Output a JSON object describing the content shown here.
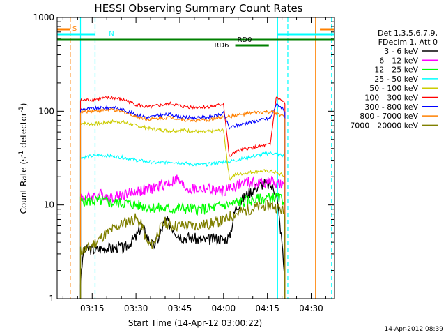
{
  "chart_data": {
    "type": "line",
    "title": "HESSI Observing Summary Count Rates",
    "xlabel": "Start Time (14-Apr-12 03:00:22)",
    "ylabel_main": "Count Rate (s",
    "ylabel_sup1": "-1",
    "ylabel_mid": " detector",
    "ylabel_sup2": "-1",
    "ylabel_end": ")",
    "y_scale": "log",
    "ylim": [
      1,
      1000
    ],
    "xlim_minutes": [
      3.0,
      98.0
    ],
    "x_ticks": [
      {
        "t": 15,
        "label": "03:15"
      },
      {
        "t": 30,
        "label": "03:30"
      },
      {
        "t": 45,
        "label": "03:45"
      },
      {
        "t": 60,
        "label": "04:00"
      },
      {
        "t": 75,
        "label": "04:15"
      },
      {
        "t": 90,
        "label": "04:30"
      }
    ],
    "y_ticks": [
      {
        "v": 1,
        "label": "1"
      },
      {
        "v": 10,
        "label": "10"
      },
      {
        "v": 100,
        "label": "100"
      },
      {
        "v": 1000,
        "label": "1000"
      }
    ],
    "legend_header": [
      "Det 1,3,5,6,7,9,",
      "FDecim 1, Att 0"
    ],
    "series": [
      {
        "name": "3 - 6 keV",
        "color": "#000000",
        "x": [
          11,
          12,
          14,
          16,
          18,
          20,
          22,
          24,
          26,
          28,
          30,
          32,
          34,
          36,
          38,
          40,
          42,
          44,
          46,
          48,
          50,
          52,
          54,
          56,
          58,
          60,
          62,
          64,
          66,
          68,
          70,
          72,
          74,
          76,
          78,
          80,
          81
        ],
        "y": [
          1.5,
          3.2,
          3.4,
          3.3,
          3.4,
          3.5,
          3.4,
          3.6,
          3.4,
          4.0,
          4.5,
          6.0,
          4.5,
          3.6,
          4.6,
          7,
          6,
          5,
          4.5,
          4.5,
          4.4,
          4.2,
          4.2,
          4.3,
          4.4,
          4.3,
          4.5,
          9,
          11,
          13,
          14.5,
          16,
          17,
          16,
          14,
          4,
          1.5
        ]
      },
      {
        "name": "6 - 12 keV",
        "color": "#ff00ff",
        "x": [
          11,
          14,
          18,
          22,
          26,
          30,
          34,
          38,
          42,
          44,
          46,
          48,
          50,
          54,
          58,
          60,
          62,
          64,
          68,
          72,
          76,
          78,
          80,
          81
        ],
        "y": [
          12,
          12,
          13,
          12,
          13,
          14,
          14.5,
          16,
          17.5,
          19,
          16,
          15,
          14.5,
          15,
          14,
          14,
          15,
          16,
          17.5,
          17,
          18,
          17,
          16,
          15
        ]
      },
      {
        "name": "12 - 25 keV",
        "color": "#00ff00",
        "x": [
          11,
          14,
          18,
          22,
          26,
          30,
          34,
          38,
          42,
          46,
          50,
          54,
          58,
          60,
          62,
          64,
          68,
          72,
          76,
          78,
          80,
          81
        ],
        "y": [
          11,
          11,
          11,
          10.5,
          10.5,
          10,
          9.5,
          9.2,
          9,
          9.2,
          9,
          9,
          9.5,
          10,
          10,
          10.5,
          11,
          11.5,
          12,
          12,
          11.5,
          11
        ]
      },
      {
        "name": "25 - 50 keV",
        "color": "#00ffff",
        "x": [
          11,
          14,
          18,
          22,
          26,
          30,
          34,
          38,
          42,
          46,
          50,
          54,
          58,
          60,
          62,
          64,
          68,
          72,
          76,
          78,
          80,
          81
        ],
        "y": [
          32,
          33,
          34,
          33,
          32,
          30,
          29,
          28,
          29,
          28,
          27,
          27,
          28,
          29,
          29,
          30,
          32,
          34,
          36,
          35,
          34,
          33
        ]
      },
      {
        "name": "50 - 100 keV",
        "color": "#cccc00",
        "x": [
          11,
          14,
          18,
          22,
          26,
          30,
          34,
          38,
          42,
          46,
          50,
          54,
          58,
          60,
          62,
          64,
          68,
          72,
          76,
          78,
          80,
          81
        ],
        "y": [
          75,
          73,
          74,
          78,
          76,
          70,
          66,
          63,
          62,
          63,
          61,
          60,
          62,
          63,
          19,
          21,
          22,
          23,
          23,
          22,
          21,
          20
        ]
      },
      {
        "name": "100 - 300 keV",
        "color": "#ff0000",
        "x": [
          11,
          14,
          18,
          22,
          26,
          30,
          34,
          38,
          42,
          46,
          50,
          54,
          58,
          60,
          62,
          64,
          68,
          72,
          76,
          78,
          80,
          81
        ],
        "y": [
          130,
          132,
          136,
          140,
          132,
          118,
          110,
          115,
          120,
          112,
          110,
          111,
          115,
          120,
          32,
          37,
          40,
          42,
          44,
          140,
          130,
          120
        ]
      },
      {
        "name": "300 - 800 keV",
        "color": "#0000ff",
        "x": [
          11,
          14,
          18,
          22,
          26,
          30,
          34,
          38,
          42,
          46,
          50,
          54,
          58,
          60,
          62,
          64,
          68,
          72,
          76,
          78,
          80,
          81
        ],
        "y": [
          104,
          106,
          108,
          110,
          103,
          92,
          86,
          90,
          93,
          86,
          85,
          86,
          90,
          95,
          66,
          70,
          75,
          80,
          84,
          118,
          110,
          100
        ]
      },
      {
        "name": "800 - 7000 keV",
        "color": "#ff8000",
        "x": [
          11,
          14,
          18,
          22,
          26,
          30,
          34,
          38,
          42,
          46,
          50,
          54,
          58,
          60,
          62,
          64,
          68,
          72,
          76,
          78,
          80,
          81
        ],
        "y": [
          98,
          100,
          102,
          104,
          97,
          88,
          82,
          84,
          86,
          81,
          80,
          80,
          84,
          88,
          88,
          90,
          94,
          97,
          98,
          95,
          90,
          85
        ]
      },
      {
        "name": "7000 - 20000 keV",
        "color": "#808000",
        "x": [
          11,
          14,
          18,
          22,
          26,
          28,
          30,
          32,
          34,
          36,
          38,
          40,
          42,
          44,
          46,
          48,
          50,
          54,
          58,
          60,
          62,
          64,
          68,
          72,
          76,
          78,
          80,
          81
        ],
        "y": [
          3.2,
          3.5,
          4.5,
          5.5,
          6.5,
          6.8,
          7.2,
          6.0,
          3.8,
          3.8,
          5.5,
          6.5,
          6.0,
          6.0,
          6.1,
          6.0,
          6.0,
          6.2,
          6.6,
          6.8,
          7.5,
          8.0,
          8.8,
          9.5,
          10,
          9.5,
          8.8,
          8.0
        ]
      }
    ],
    "flag_bars": [
      {
        "label": "S",
        "color": "#ff8000",
        "segments": [
          [
            3.0,
            7.5
          ],
          [
            93.0,
            98.0
          ]
        ]
      },
      {
        "label": "N",
        "color": "#00ffff",
        "segments": [
          [
            3.0,
            16.0
          ],
          [
            78.5,
            98.0
          ]
        ]
      },
      {
        "label": "",
        "color": "#008000",
        "segments": [
          [
            3.0,
            98.0
          ]
        ]
      },
      {
        "label": "RD0",
        "color": "#008000",
        "segments": []
      },
      {
        "label": "RD6",
        "color": "#008000",
        "segments": [
          [
            64.0,
            75.5
          ]
        ]
      }
    ],
    "vertical_markers": [
      {
        "t": 7.5,
        "color": "#ff8000",
        "style": "dashed"
      },
      {
        "t": 11.0,
        "color": "#00ffff",
        "style": "solid"
      },
      {
        "t": 16.0,
        "color": "#00ffff",
        "style": "dashed"
      },
      {
        "t": 78.5,
        "color": "#00ffff",
        "style": "solid"
      },
      {
        "t": 82.0,
        "color": "#00ffff",
        "style": "dashed"
      },
      {
        "t": 91.5,
        "color": "#ff8000",
        "style": "solid"
      },
      {
        "t": 97.0,
        "color": "#00ffff",
        "style": "dashed"
      }
    ],
    "footer_date": "14-Apr-2012 08:39"
  }
}
